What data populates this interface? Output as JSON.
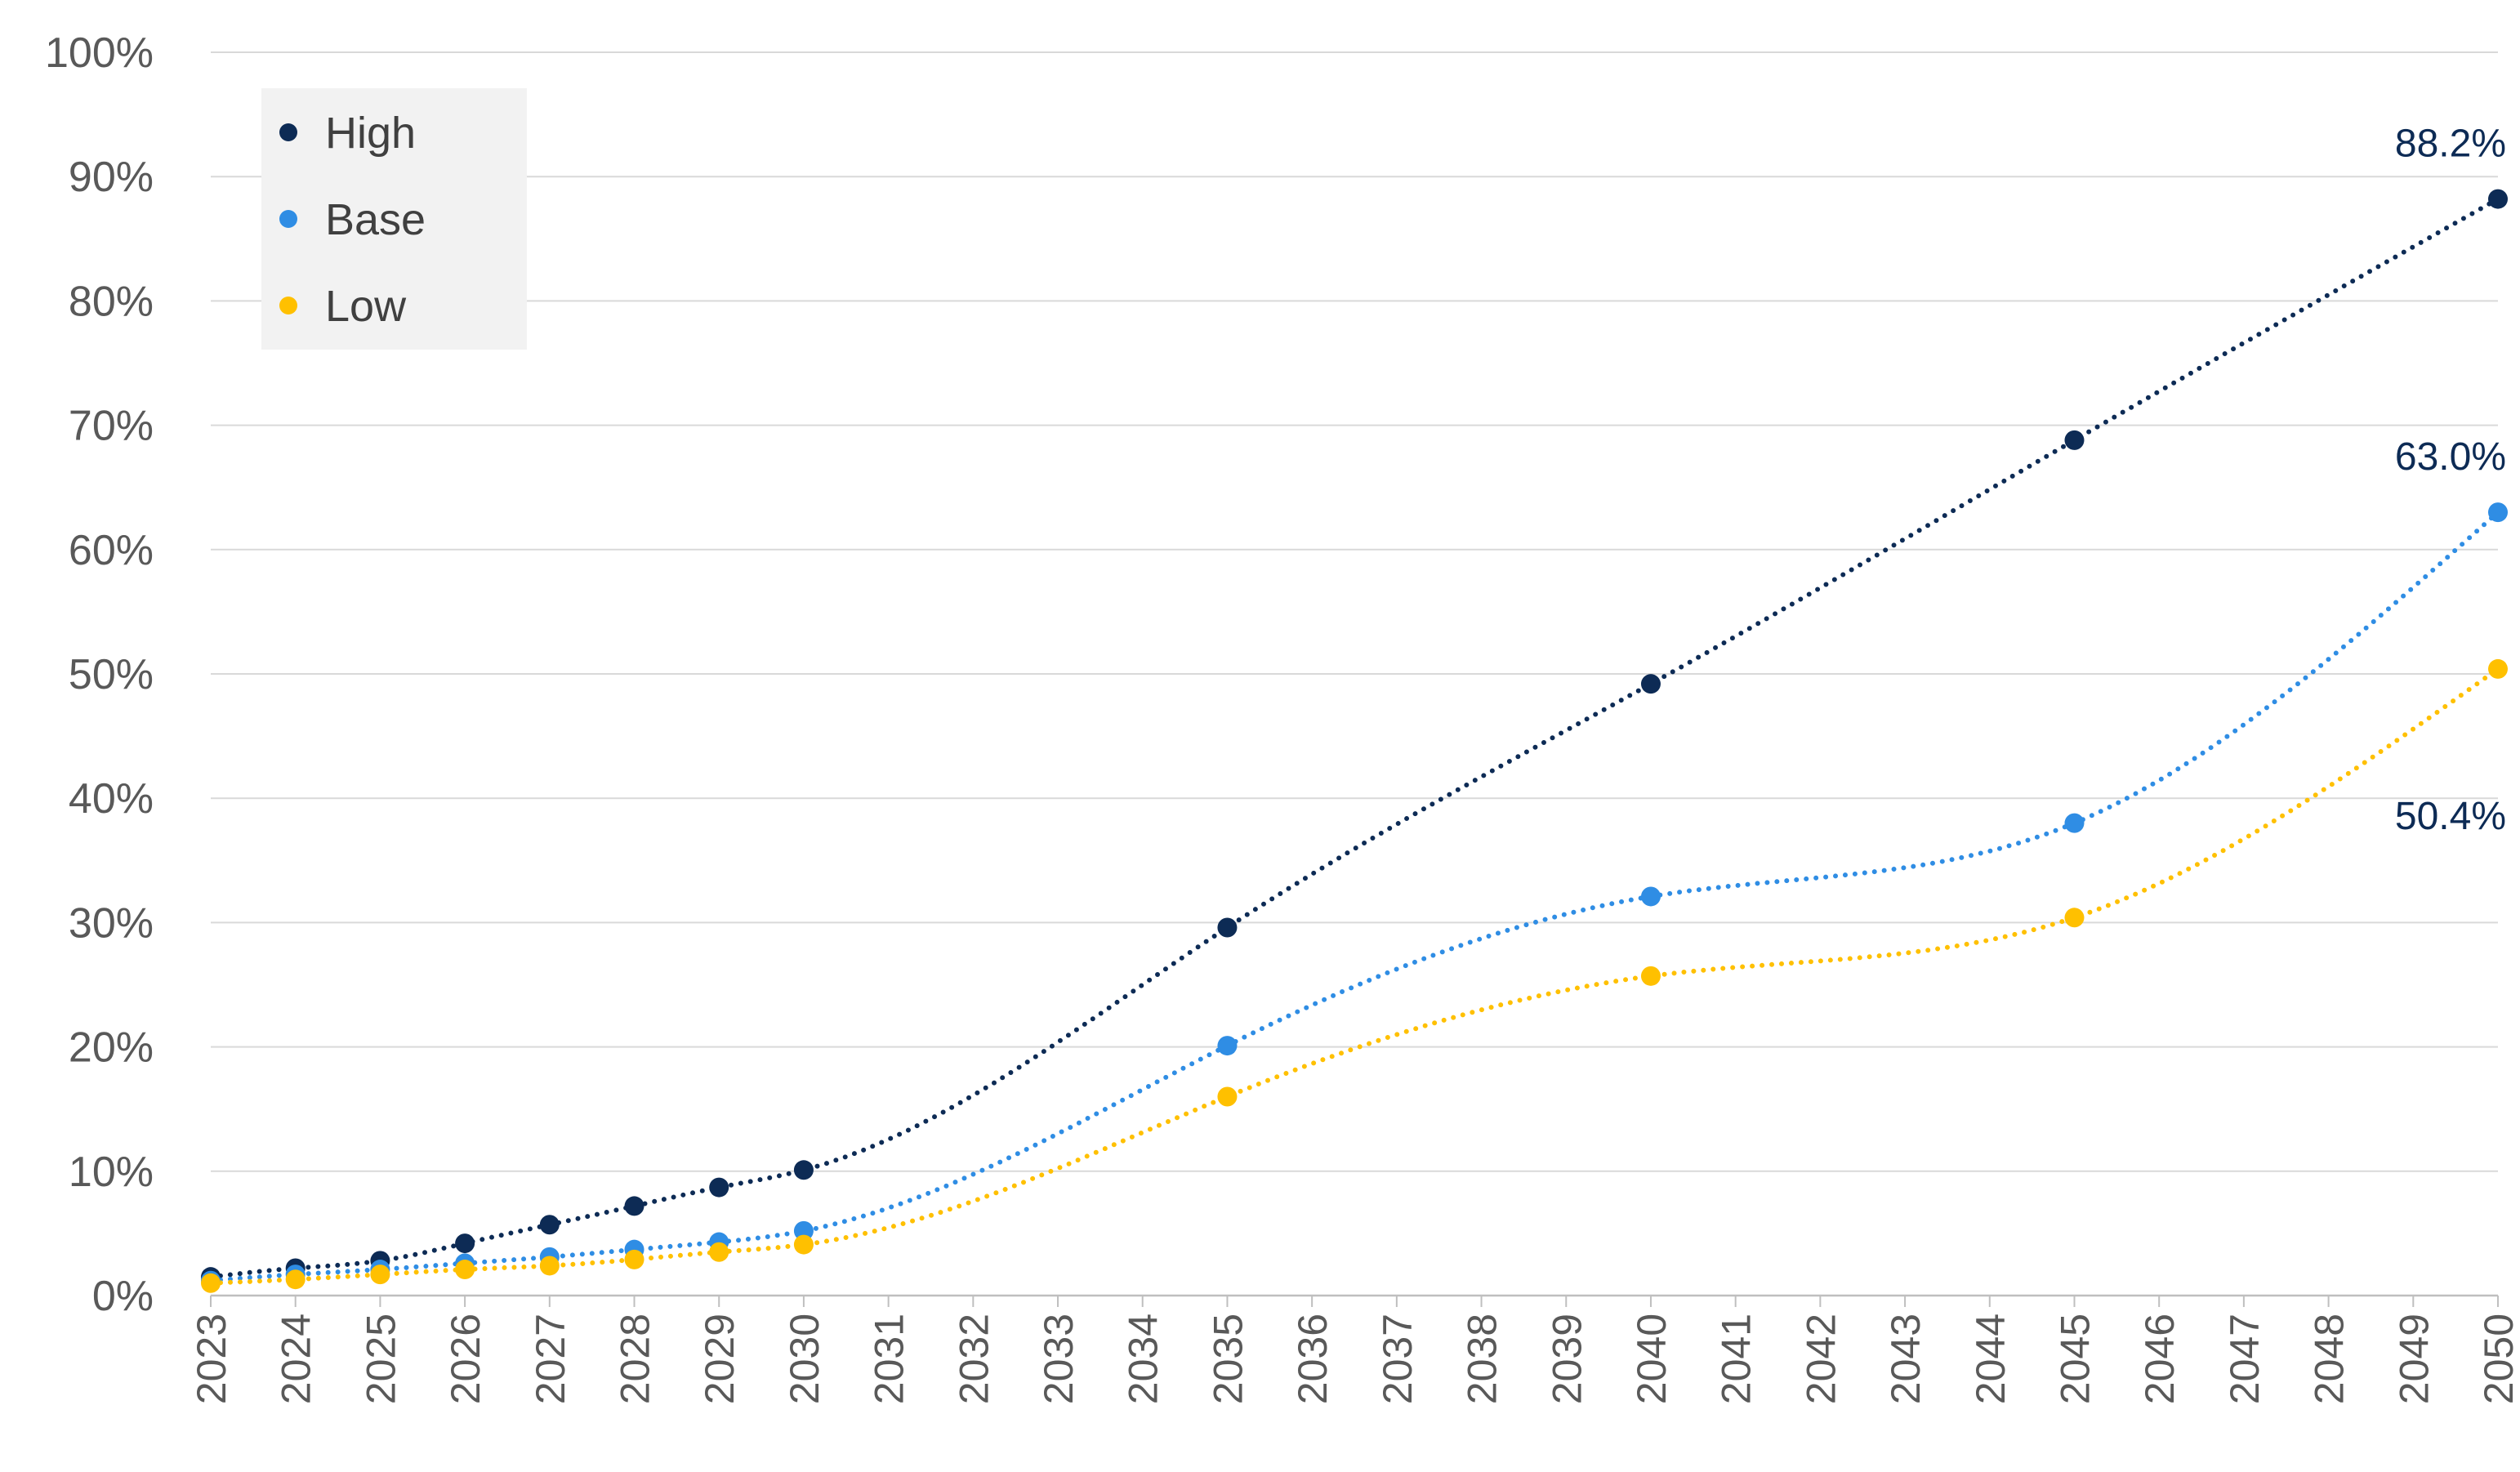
{
  "chart_data": {
    "type": "scatter",
    "x": [
      2023,
      2024,
      2025,
      2026,
      2027,
      2028,
      2029,
      2030,
      2035,
      2040,
      2045,
      2050
    ],
    "series": [
      {
        "name": "High",
        "color": "#0d2b55",
        "values": [
          1.5,
          2.2,
          2.8,
          4.2,
          5.7,
          7.2,
          8.7,
          10.1,
          29.6,
          49.2,
          68.8,
          88.2
        ]
      },
      {
        "name": "Base",
        "color": "#2f8de4",
        "values": [
          1.2,
          1.7,
          2.1,
          2.6,
          3.1,
          3.7,
          4.3,
          5.2,
          20.1,
          32.1,
          38.0,
          63.0
        ]
      },
      {
        "name": "Low",
        "color": "#ffc000",
        "values": [
          1.0,
          1.3,
          1.7,
          2.1,
          2.4,
          2.9,
          3.5,
          4.1,
          16.0,
          25.7,
          30.4,
          50.4
        ]
      }
    ],
    "data_labels": [
      "88.2%",
      "63.0%",
      "50.4%"
    ],
    "x_ticks": [
      "2023",
      "2024",
      "2025",
      "2026",
      "2027",
      "2028",
      "2029",
      "2030",
      "2031",
      "2032",
      "2033",
      "2034",
      "2035",
      "2036",
      "2037",
      "2038",
      "2039",
      "2040",
      "2041",
      "2042",
      "2043",
      "2044",
      "2045",
      "2046",
      "2047",
      "2048",
      "2049",
      "2050"
    ],
    "y_ticks": [
      "0%",
      "10%",
      "20%",
      "30%",
      "40%",
      "50%",
      "60%",
      "70%",
      "80%",
      "90%",
      "100%"
    ],
    "xlim": [
      2023,
      2050
    ],
    "ylim": [
      0,
      100
    ],
    "grid": "horizontal",
    "trendline": "dotted",
    "legend": {
      "placement": "top-left",
      "entries": [
        "High",
        "Base",
        "Low"
      ]
    },
    "title": "",
    "xlabel": "",
    "ylabel": ""
  }
}
